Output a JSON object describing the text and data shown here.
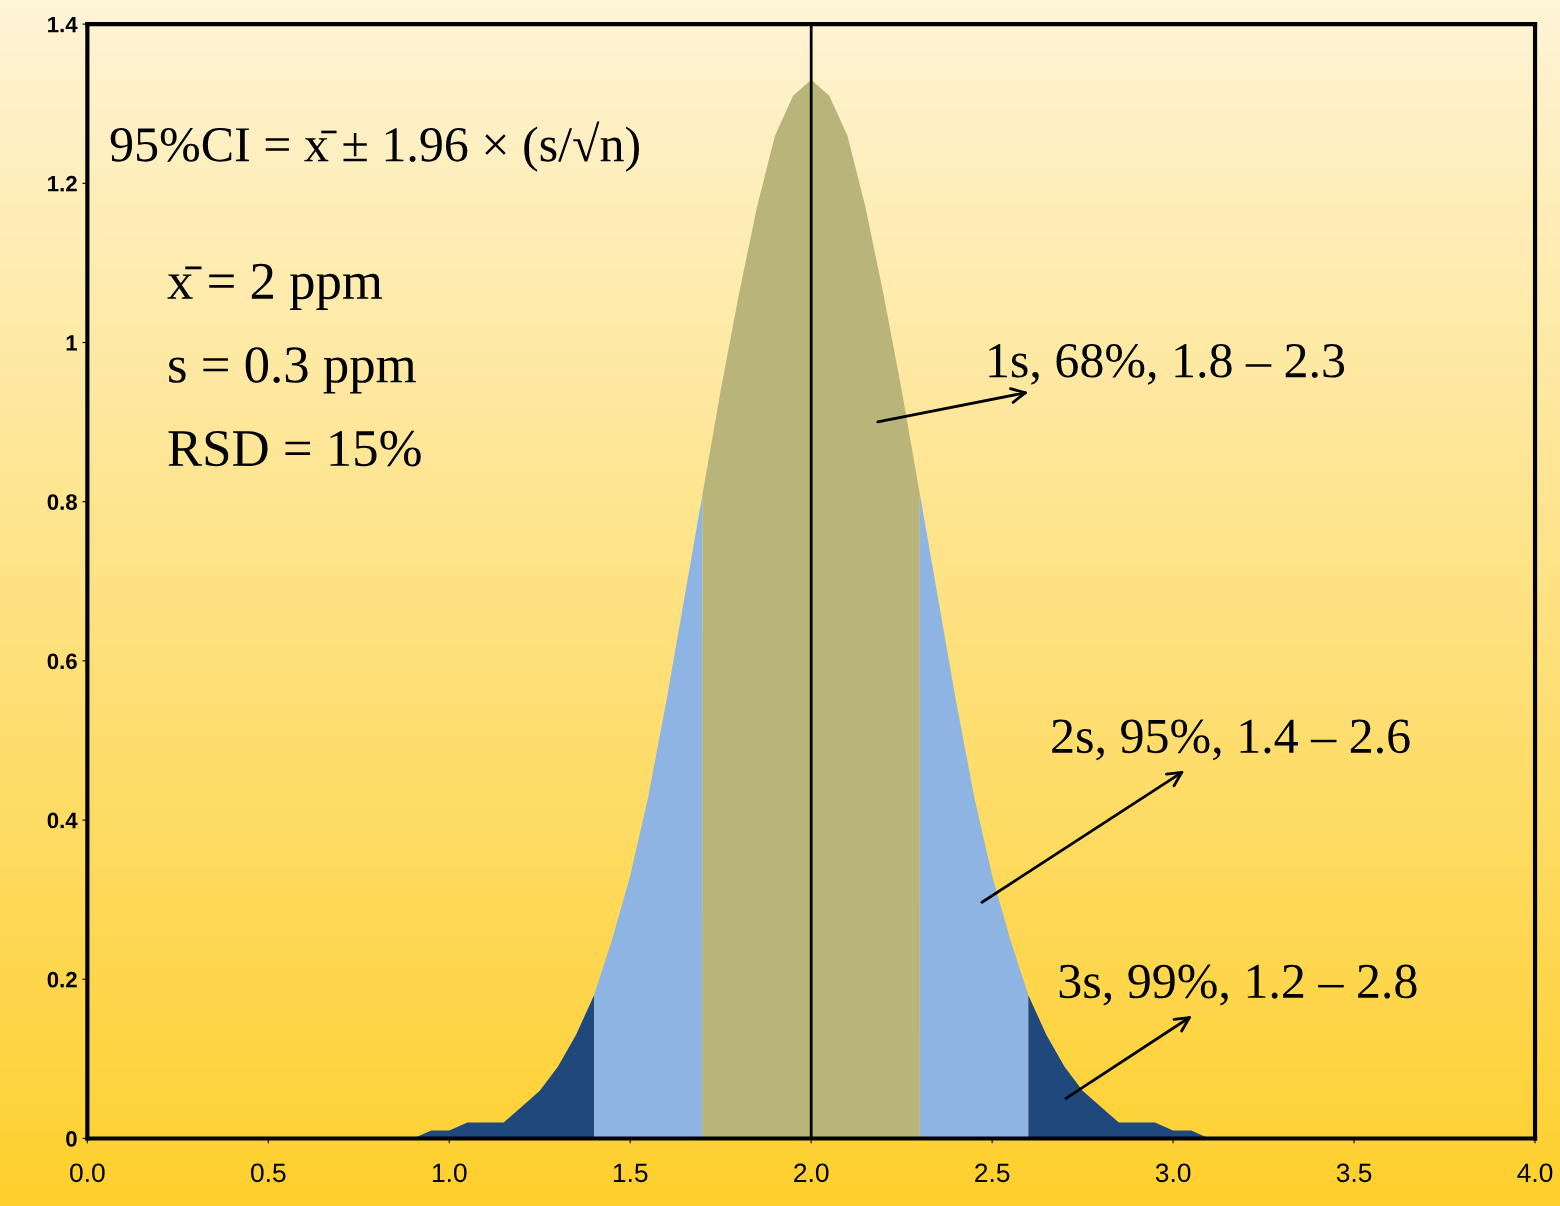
{
  "chart_data": {
    "type": "area",
    "series": [
      {
        "color": "#1f497d",
        "x": [
          0.8,
          0.9,
          0.95,
          1.0,
          1.05,
          1.1,
          1.15,
          1.2,
          1.25,
          1.3,
          1.35,
          1.4
        ],
        "values": [
          0,
          0,
          0.01,
          0.01,
          0.02,
          0.02,
          0.02,
          0.04,
          0.06,
          0.09,
          0.13,
          0.18
        ]
      },
      {
        "color": "#8eb4e3",
        "x": [
          1.4,
          1.45,
          1.5,
          1.55,
          1.6,
          1.65,
          1.7
        ],
        "values": [
          0.18,
          0.25,
          0.33,
          0.43,
          0.55,
          0.68,
          0.81
        ]
      },
      {
        "color": "#b9b47a",
        "x": [
          1.7,
          1.75,
          1.8,
          1.85,
          1.9,
          1.95,
          2.0,
          2.05,
          2.1,
          2.15,
          2.2,
          2.25,
          2.3
        ],
        "values": [
          0.81,
          0.94,
          1.06,
          1.17,
          1.26,
          1.31,
          1.33,
          1.31,
          1.26,
          1.17,
          1.06,
          0.94,
          0.81
        ]
      },
      {
        "color": "#8eb4e3",
        "x": [
          2.3,
          2.35,
          2.4,
          2.45,
          2.5,
          2.55,
          2.6
        ],
        "values": [
          0.81,
          0.68,
          0.55,
          0.43,
          0.33,
          0.25,
          0.18
        ]
      },
      {
        "color": "#1f497d",
        "x": [
          2.6,
          2.65,
          2.7,
          2.75,
          2.8,
          2.85,
          2.9,
          2.95,
          3.0,
          3.05,
          3.1,
          3.2
        ],
        "values": [
          0.18,
          0.13,
          0.09,
          0.06,
          0.04,
          0.02,
          0.02,
          0.02,
          0.01,
          0.01,
          0,
          0
        ]
      }
    ],
    "xlim": [
      0,
      4
    ],
    "ylim": [
      0,
      1.4
    ],
    "xticks": [
      {
        "value": 0,
        "label": "0.0"
      },
      {
        "value": 0.5,
        "label": "0.5"
      },
      {
        "value": 1,
        "label": "1.0"
      },
      {
        "value": 1.5,
        "label": "1.5"
      },
      {
        "value": 2,
        "label": "2.0"
      },
      {
        "value": 2.5,
        "label": "2.5"
      },
      {
        "value": 3,
        "label": "3.0"
      },
      {
        "value": 3.5,
        "label": "3.5"
      },
      {
        "value": 4,
        "label": "4.0"
      }
    ],
    "yticks": [
      0,
      0.2,
      0.4,
      0.6,
      0.8,
      1,
      1.2,
      1.4
    ],
    "ref_lines": [
      {
        "axis": "x",
        "value": 2,
        "color": "#000000"
      }
    ],
    "annotations": [
      "95%CI = x̄ ± 1.96 × (s/√n)",
      "x̄ = 2 ppm",
      "s = 0.3 ppm",
      "RSD = 15%",
      "1s, 68%, 1.8 – 2.3",
      "2s, 95%, 1.4 – 2.6",
      "3s, 99%, 1.2 – 2.8"
    ],
    "grid": false,
    "legend": false
  }
}
